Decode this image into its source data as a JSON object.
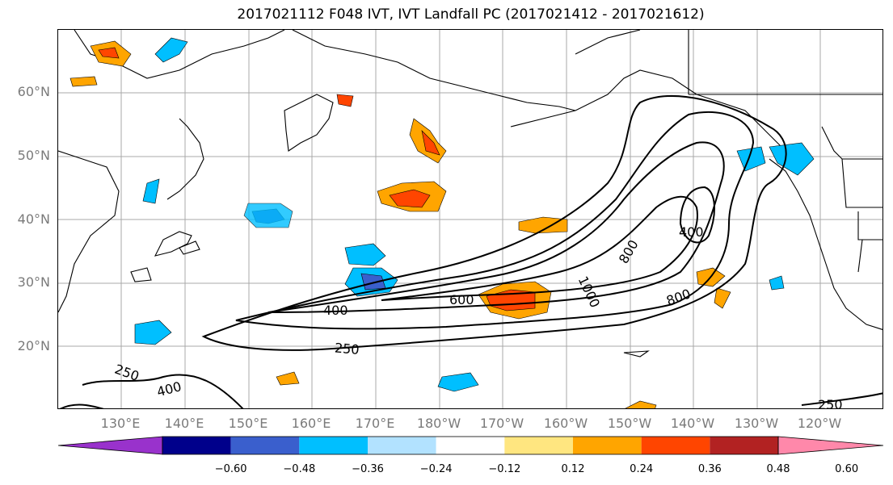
{
  "title": "2017021112 F048 IVT, IVT Landfall PC (2017021412 - 2017021612)",
  "lat_labels": [
    "60°N",
    "50°N",
    "40°N",
    "30°N",
    "20°N"
  ],
  "lon_labels": [
    "130°E",
    "140°E",
    "150°E",
    "160°E",
    "170°E",
    "180°W",
    "170°W",
    "160°W",
    "150°W",
    "140°W",
    "130°W",
    "120°W"
  ],
  "contour_labels": [
    "400",
    "600",
    "800",
    "1000",
    "400",
    "800",
    "250",
    "250",
    "400",
    "250"
  ],
  "colorbar": {
    "ticks": [
      "−0.60",
      "−0.48",
      "−0.36",
      "−0.24",
      "−0.12",
      "0.12",
      "0.24",
      "0.36",
      "0.48",
      "0.60"
    ],
    "colors": [
      "#9932cc",
      "#00008b",
      "#3a5fcd",
      "#00bfff",
      "#b2e2ff",
      "#ffffff",
      "#ffe680",
      "#ffa500",
      "#ff4500",
      "#b22222",
      "#ff88aa"
    ]
  }
}
